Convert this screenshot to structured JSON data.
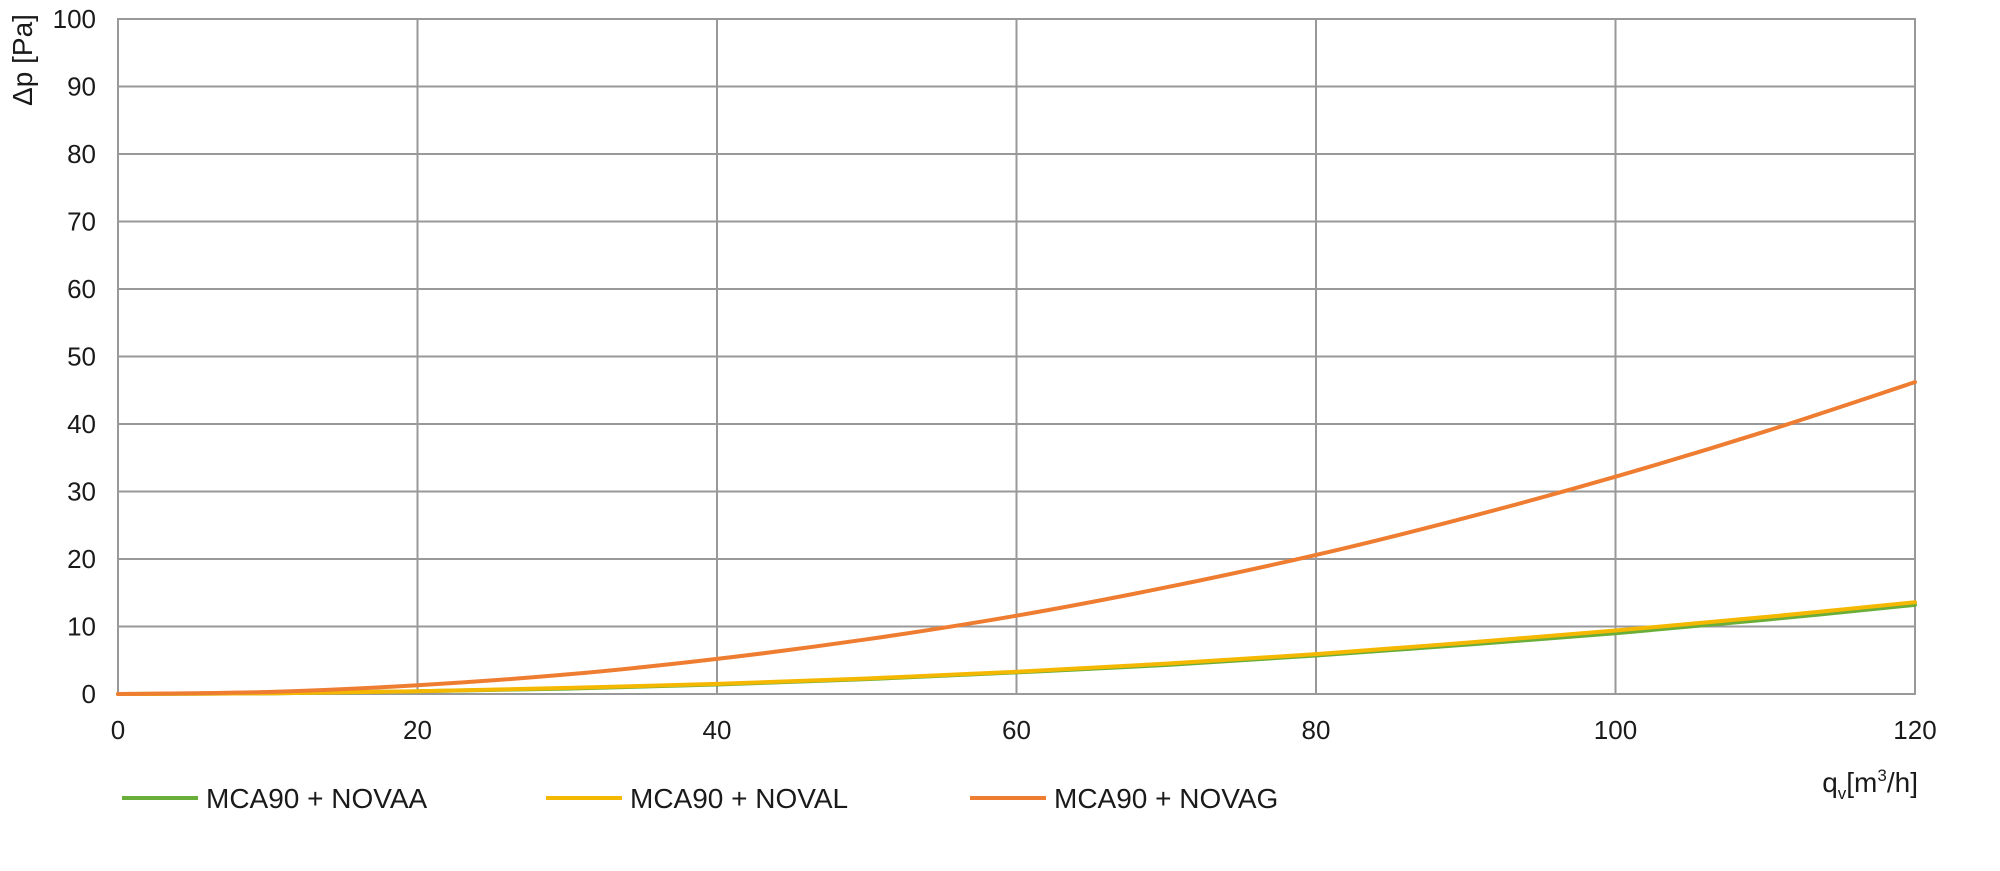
{
  "chart_data": {
    "type": "line",
    "title": "",
    "xlabel": "q",
    "xlabel_sub": "v",
    "xlabel_unit": "[m",
    "xlabel_sup": "3",
    "xlabel_unit_end": "/h]",
    "ylabel": "Δp [Pa]",
    "xlim": [
      0,
      120
    ],
    "ylim": [
      0,
      100
    ],
    "xticks": [
      0,
      20,
      40,
      60,
      80,
      100,
      120
    ],
    "yticks": [
      0,
      10,
      20,
      30,
      40,
      50,
      60,
      70,
      80,
      90,
      100
    ],
    "grid": true,
    "legend_position": "bottom-left",
    "x": [
      0,
      10,
      20,
      30,
      40,
      50,
      60,
      70,
      80,
      90,
      100,
      110,
      120
    ],
    "series": [
      {
        "name": "MCA90 + NOVAA",
        "color": "#6aae3a",
        "values": [
          0,
          0.1,
          0.4,
          0.8,
          1.4,
          2.2,
          3.2,
          4.3,
          5.7,
          7.3,
          9.0,
          11.0,
          13.2
        ]
      },
      {
        "name": "MCA90 + NOVAL",
        "color": "#f5b800",
        "values": [
          0,
          0.1,
          0.4,
          0.9,
          1.5,
          2.3,
          3.3,
          4.5,
          5.9,
          7.6,
          9.4,
          11.4,
          13.6
        ]
      },
      {
        "name": "MCA90 + NOVAG",
        "color": "#ee7d31",
        "values": [
          0,
          0.3,
          1.3,
          2.9,
          5.2,
          8.1,
          11.6,
          15.8,
          20.6,
          26.1,
          32.2,
          38.9,
          46.2
        ]
      }
    ]
  }
}
